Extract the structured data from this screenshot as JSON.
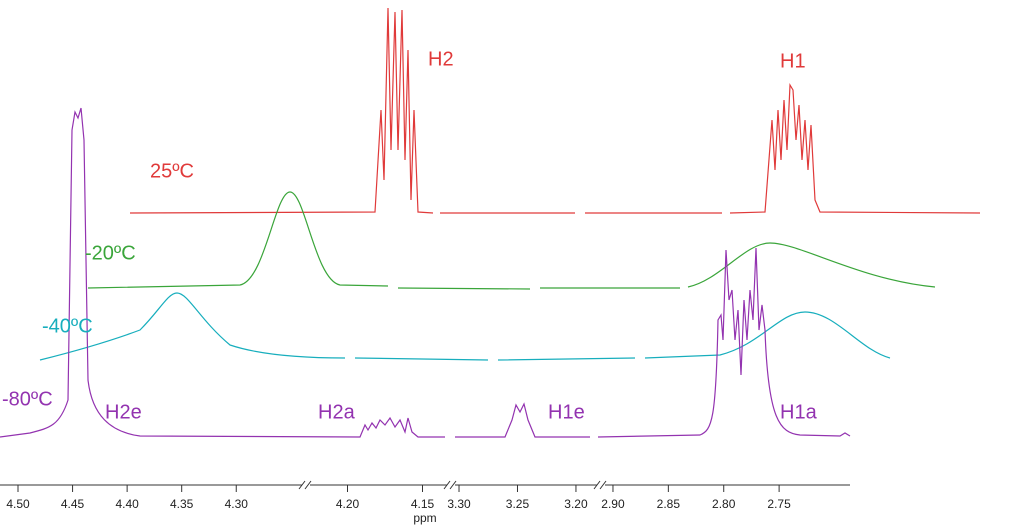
{
  "chart_data": {
    "type": "nmr-stack",
    "x_label": "ppm",
    "segments": [
      {
        "xlim": [
          4.5165,
          4.237
        ],
        "xticks": [
          {
            "value": 4.5,
            "label": "4.50"
          },
          4.45,
          {
            "value": 4.4,
            "label": "4.40"
          },
          4.35,
          {
            "value": 4.3,
            "label": "4.30"
          }
        ]
      },
      {
        "xlim": [
          4.225,
          4.133
        ],
        "xticks": [
          {
            "value": 4.2,
            "label": "4.20"
          },
          4.15
        ]
      },
      {
        "xlim": [
          3.306,
          3.182
        ],
        "xticks": [
          {
            "value": 3.3,
            "label": "3.30"
          },
          3.25,
          {
            "value": 3.2,
            "label": "3.20"
          }
        ]
      },
      {
        "xlim": [
          2.909,
          2.686
        ],
        "xticks": [
          {
            "value": 2.9,
            "label": "2.90"
          },
          2.85,
          {
            "value": 2.8,
            "label": "2.80"
          },
          2.75
        ]
      }
    ],
    "traces": [
      {
        "name": "25ºC",
        "color": "#e03a3a",
        "labels": [
          "H2",
          "H1"
        ]
      },
      {
        "name": "-20ºC",
        "color": "#3aa53a",
        "labels": []
      },
      {
        "name": "-40ºC",
        "color": "#17aebd",
        "labels": []
      },
      {
        "name": "-80ºC",
        "color": "#9333b0",
        "labels": [
          "H2e",
          "H2a",
          "H1e",
          "H1a"
        ]
      }
    ]
  }
}
